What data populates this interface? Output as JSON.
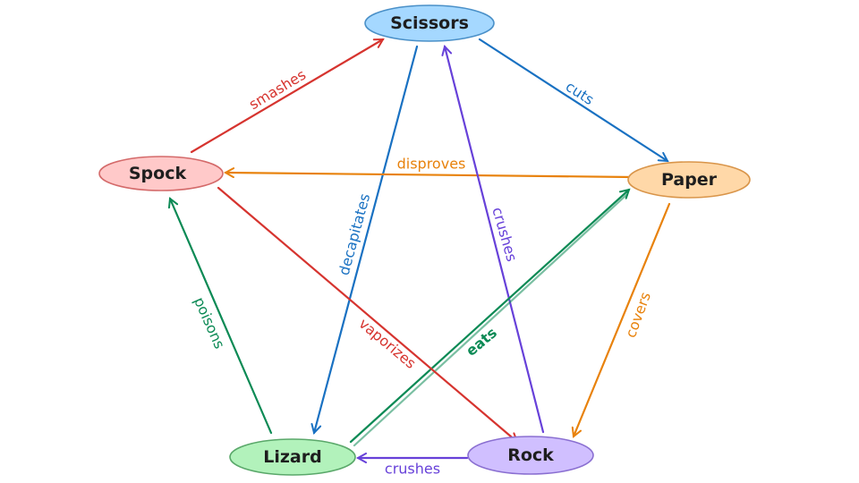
{
  "nodes": {
    "scissors": {
      "label": "Scissors",
      "fill": "#a5d8ff",
      "stroke": "#4a90c8"
    },
    "paper": {
      "label": "Paper",
      "fill": "#ffd8a8",
      "stroke": "#d9954a"
    },
    "rock": {
      "label": "Rock",
      "fill": "#d0bfff",
      "stroke": "#8a6fd1"
    },
    "lizard": {
      "label": "Lizard",
      "fill": "#b2f2bb",
      "stroke": "#5aa86a"
    },
    "spock": {
      "label": "Spock",
      "fill": "#ffc9c9",
      "stroke": "#d46a6a"
    }
  },
  "edges": {
    "scissors_paper": {
      "from": "Scissors",
      "to": "Paper",
      "label": "cuts",
      "color": "#1971c2"
    },
    "scissors_lizard": {
      "from": "Scissors",
      "to": "Lizard",
      "label": "decapitates",
      "color": "#1971c2"
    },
    "paper_spock": {
      "from": "Paper",
      "to": "Spock",
      "label": "disproves",
      "color": "#e8820c"
    },
    "paper_rock": {
      "from": "Paper",
      "to": "Rock",
      "label": "covers",
      "color": "#e8820c"
    },
    "rock_scissors": {
      "from": "Rock",
      "to": "Scissors",
      "label": "crushes",
      "color": "#6741d9"
    },
    "rock_lizard": {
      "from": "Rock",
      "to": "Lizard",
      "label": "crushes",
      "color": "#6741d9"
    },
    "lizard_spock": {
      "from": "Lizard",
      "to": "Spock",
      "label": "poisons",
      "color": "#0c8a55"
    },
    "lizard_paper": {
      "from": "Lizard",
      "to": "Paper",
      "label": "eats",
      "color": "#0c8a55"
    },
    "spock_scissors": {
      "from": "Spock",
      "to": "Scissors",
      "label": "smashes",
      "color": "#d6342f"
    },
    "spock_rock": {
      "from": "Spock",
      "to": "Rock",
      "label": "vaporizes",
      "color": "#d6342f"
    }
  }
}
